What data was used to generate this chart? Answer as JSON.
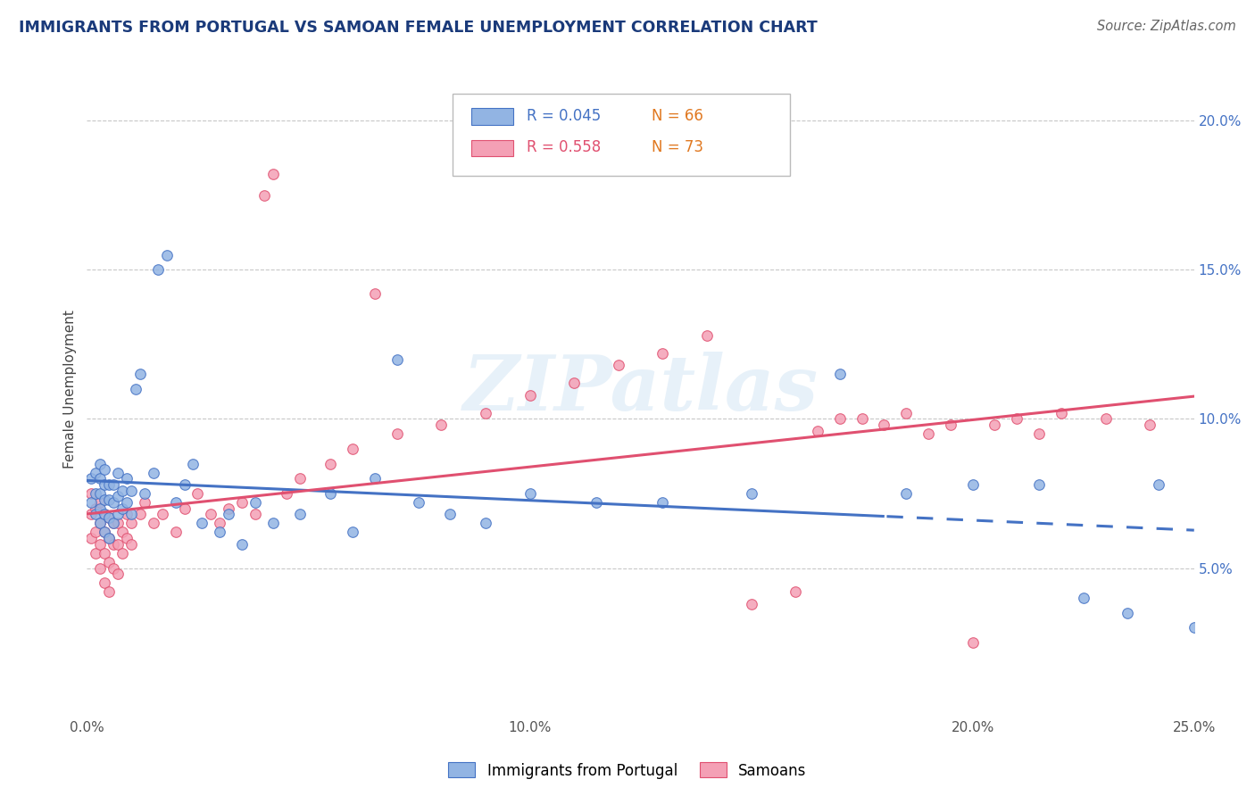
{
  "title": "IMMIGRANTS FROM PORTUGAL VS SAMOAN FEMALE UNEMPLOYMENT CORRELATION CHART",
  "source": "Source: ZipAtlas.com",
  "ylabel": "Female Unemployment",
  "xlim": [
    0.0,
    0.25
  ],
  "ylim": [
    0.0,
    0.22
  ],
  "xticks": [
    0.0,
    0.05,
    0.1,
    0.15,
    0.2,
    0.25
  ],
  "xticklabels": [
    "0.0%",
    "",
    "10.0%",
    "",
    "20.0%",
    "25.0%"
  ],
  "yticks_right": [
    0.05,
    0.1,
    0.15,
    0.2
  ],
  "yticklabels_right": [
    "5.0%",
    "10.0%",
    "15.0%",
    "20.0%"
  ],
  "blue_R": "R = 0.045",
  "blue_N": "N = 66",
  "pink_R": "R = 0.558",
  "pink_N": "N = 73",
  "blue_color": "#92b4e3",
  "pink_color": "#f4a0b5",
  "blue_line_color": "#4472c4",
  "pink_line_color": "#e05070",
  "legend_label_blue": "Immigrants from Portugal",
  "legend_label_pink": "Samoans",
  "watermark": "ZIPatlas",
  "blue_scatter_x": [
    0.001,
    0.001,
    0.002,
    0.002,
    0.002,
    0.003,
    0.003,
    0.003,
    0.003,
    0.003,
    0.004,
    0.004,
    0.004,
    0.004,
    0.004,
    0.005,
    0.005,
    0.005,
    0.005,
    0.006,
    0.006,
    0.006,
    0.007,
    0.007,
    0.007,
    0.008,
    0.008,
    0.009,
    0.009,
    0.01,
    0.01,
    0.011,
    0.012,
    0.013,
    0.015,
    0.016,
    0.018,
    0.02,
    0.022,
    0.024,
    0.026,
    0.03,
    0.032,
    0.035,
    0.038,
    0.042,
    0.048,
    0.055,
    0.06,
    0.065,
    0.07,
    0.075,
    0.082,
    0.09,
    0.1,
    0.115,
    0.13,
    0.15,
    0.17,
    0.185,
    0.2,
    0.215,
    0.225,
    0.235,
    0.242,
    0.25
  ],
  "blue_scatter_y": [
    0.072,
    0.08,
    0.068,
    0.075,
    0.082,
    0.065,
    0.07,
    0.075,
    0.08,
    0.085,
    0.062,
    0.068,
    0.073,
    0.078,
    0.083,
    0.06,
    0.067,
    0.073,
    0.078,
    0.065,
    0.072,
    0.078,
    0.068,
    0.074,
    0.082,
    0.07,
    0.076,
    0.072,
    0.08,
    0.068,
    0.076,
    0.11,
    0.115,
    0.075,
    0.082,
    0.15,
    0.155,
    0.072,
    0.078,
    0.085,
    0.065,
    0.062,
    0.068,
    0.058,
    0.072,
    0.065,
    0.068,
    0.075,
    0.062,
    0.08,
    0.12,
    0.072,
    0.068,
    0.065,
    0.075,
    0.072,
    0.072,
    0.075,
    0.115,
    0.075,
    0.078,
    0.078,
    0.04,
    0.035,
    0.078,
    0.03
  ],
  "pink_scatter_x": [
    0.001,
    0.001,
    0.001,
    0.002,
    0.002,
    0.002,
    0.003,
    0.003,
    0.003,
    0.003,
    0.004,
    0.004,
    0.004,
    0.004,
    0.005,
    0.005,
    0.005,
    0.005,
    0.006,
    0.006,
    0.006,
    0.007,
    0.007,
    0.007,
    0.008,
    0.008,
    0.009,
    0.009,
    0.01,
    0.01,
    0.012,
    0.013,
    0.015,
    0.017,
    0.02,
    0.022,
    0.025,
    0.028,
    0.03,
    0.032,
    0.035,
    0.038,
    0.04,
    0.042,
    0.045,
    0.048,
    0.055,
    0.06,
    0.065,
    0.07,
    0.08,
    0.09,
    0.1,
    0.11,
    0.12,
    0.13,
    0.14,
    0.15,
    0.16,
    0.165,
    0.17,
    0.175,
    0.18,
    0.185,
    0.19,
    0.195,
    0.2,
    0.205,
    0.21,
    0.215,
    0.22,
    0.23,
    0.24
  ],
  "pink_scatter_y": [
    0.06,
    0.068,
    0.075,
    0.055,
    0.062,
    0.07,
    0.05,
    0.058,
    0.065,
    0.072,
    0.045,
    0.055,
    0.062,
    0.068,
    0.042,
    0.052,
    0.06,
    0.067,
    0.05,
    0.058,
    0.065,
    0.048,
    0.058,
    0.065,
    0.055,
    0.062,
    0.06,
    0.068,
    0.058,
    0.065,
    0.068,
    0.072,
    0.065,
    0.068,
    0.062,
    0.07,
    0.075,
    0.068,
    0.065,
    0.07,
    0.072,
    0.068,
    0.175,
    0.182,
    0.075,
    0.08,
    0.085,
    0.09,
    0.142,
    0.095,
    0.098,
    0.102,
    0.108,
    0.112,
    0.118,
    0.122,
    0.128,
    0.038,
    0.042,
    0.096,
    0.1,
    0.1,
    0.098,
    0.102,
    0.095,
    0.098,
    0.025,
    0.098,
    0.1,
    0.095,
    0.102,
    0.1,
    0.098
  ]
}
